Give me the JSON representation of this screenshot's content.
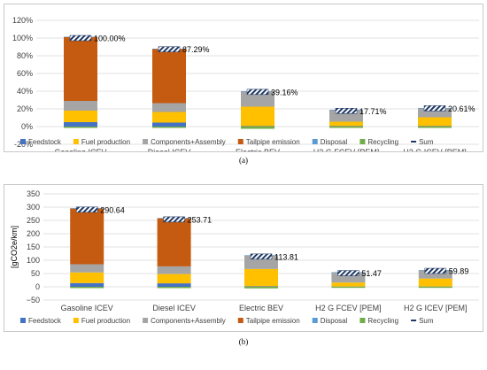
{
  "legend": {
    "items": [
      {
        "name": "Feedstock",
        "color": "#4472c4",
        "shape": "box"
      },
      {
        "name": "Fuel production",
        "color": "#ffc000",
        "shape": "box"
      },
      {
        "name": "Components+Assembly",
        "color": "#a5a5a5",
        "shape": "box"
      },
      {
        "name": "Tailpipe emission",
        "color": "#c55a11",
        "shape": "box"
      },
      {
        "name": "Disposal",
        "color": "#5b9bd5",
        "shape": "box"
      },
      {
        "name": "Recycling",
        "color": "#70ad47",
        "shape": "box"
      },
      {
        "name": "Sum",
        "color": "#1f3864",
        "shape": "line"
      }
    ]
  },
  "captions": {
    "a": "(a)",
    "b": "(b)"
  },
  "chart_data": [
    {
      "type": "bar",
      "stacked": true,
      "categories": [
        "Gasoline ICEV",
        "Diesel ICEV",
        "Electric BEV",
        "H2 G FCEV [PEM]",
        "H2 G ICEV [PEM]"
      ],
      "yticks": [
        "120%",
        "100%",
        "80%",
        "60%",
        "40%",
        "20%",
        "0%",
        "-20%"
      ],
      "ylim": [
        -20,
        120
      ],
      "grid": true,
      "legend_position": "bottom",
      "series": [
        {
          "name": "Feedstock",
          "values": [
            5,
            4.5,
            0.5,
            0.5,
            0.5
          ]
        },
        {
          "name": "Fuel production",
          "values": [
            13,
            12,
            22,
            5,
            10
          ]
        },
        {
          "name": "Components+Assembly",
          "values": [
            11,
            10,
            17,
            13,
            10
          ]
        },
        {
          "name": "Tailpipe emission",
          "values": [
            72,
            61,
            0,
            0,
            0
          ]
        },
        {
          "name": "Disposal",
          "values": [
            0.5,
            0.5,
            0.5,
            0.5,
            0.5
          ]
        },
        {
          "name": "Recycling",
          "values": [
            -1.5,
            -1.5,
            -2.5,
            -1.5,
            -1.5
          ]
        }
      ],
      "sum": [
        100.0,
        87.29,
        39.16,
        17.71,
        20.61
      ],
      "sum_labels": [
        "100.00%",
        "87.29%",
        "39.16%",
        "17.71%",
        "20.61%"
      ]
    },
    {
      "type": "bar",
      "stacked": true,
      "categories": [
        "Gasoline ICEV",
        "Diesel ICEV",
        "Electric BEV",
        "H2 G FCEV [PEM]",
        "H2 G ICEV [PEM]"
      ],
      "ylabel": "[gCO2e/km]",
      "yticks": [
        "350",
        "300",
        "250",
        "200",
        "150",
        "100",
        "50",
        "0",
        "−50"
      ],
      "ylim": [
        -50,
        350
      ],
      "grid": true,
      "legend_position": "bottom",
      "series": [
        {
          "name": "Feedstock",
          "values": [
            14,
            13,
            2,
            1,
            1
          ]
        },
        {
          "name": "Fuel production",
          "values": [
            40,
            35,
            65,
            15,
            30
          ]
        },
        {
          "name": "Components+Assembly",
          "values": [
            31,
            29,
            51,
            38,
            31
          ]
        },
        {
          "name": "Tailpipe emission",
          "values": [
            210,
            181,
            0,
            0,
            0
          ]
        },
        {
          "name": "Disposal",
          "values": [
            1,
            1,
            1,
            1,
            1
          ]
        },
        {
          "name": "Recycling",
          "values": [
            -5,
            -5,
            -6,
            -4,
            -4
          ]
        }
      ],
      "sum": [
        290.64,
        253.71,
        113.81,
        51.47,
        59.89
      ],
      "sum_labels": [
        "290.64",
        "253.71",
        "113.81",
        "51.47",
        "59.89"
      ]
    }
  ]
}
